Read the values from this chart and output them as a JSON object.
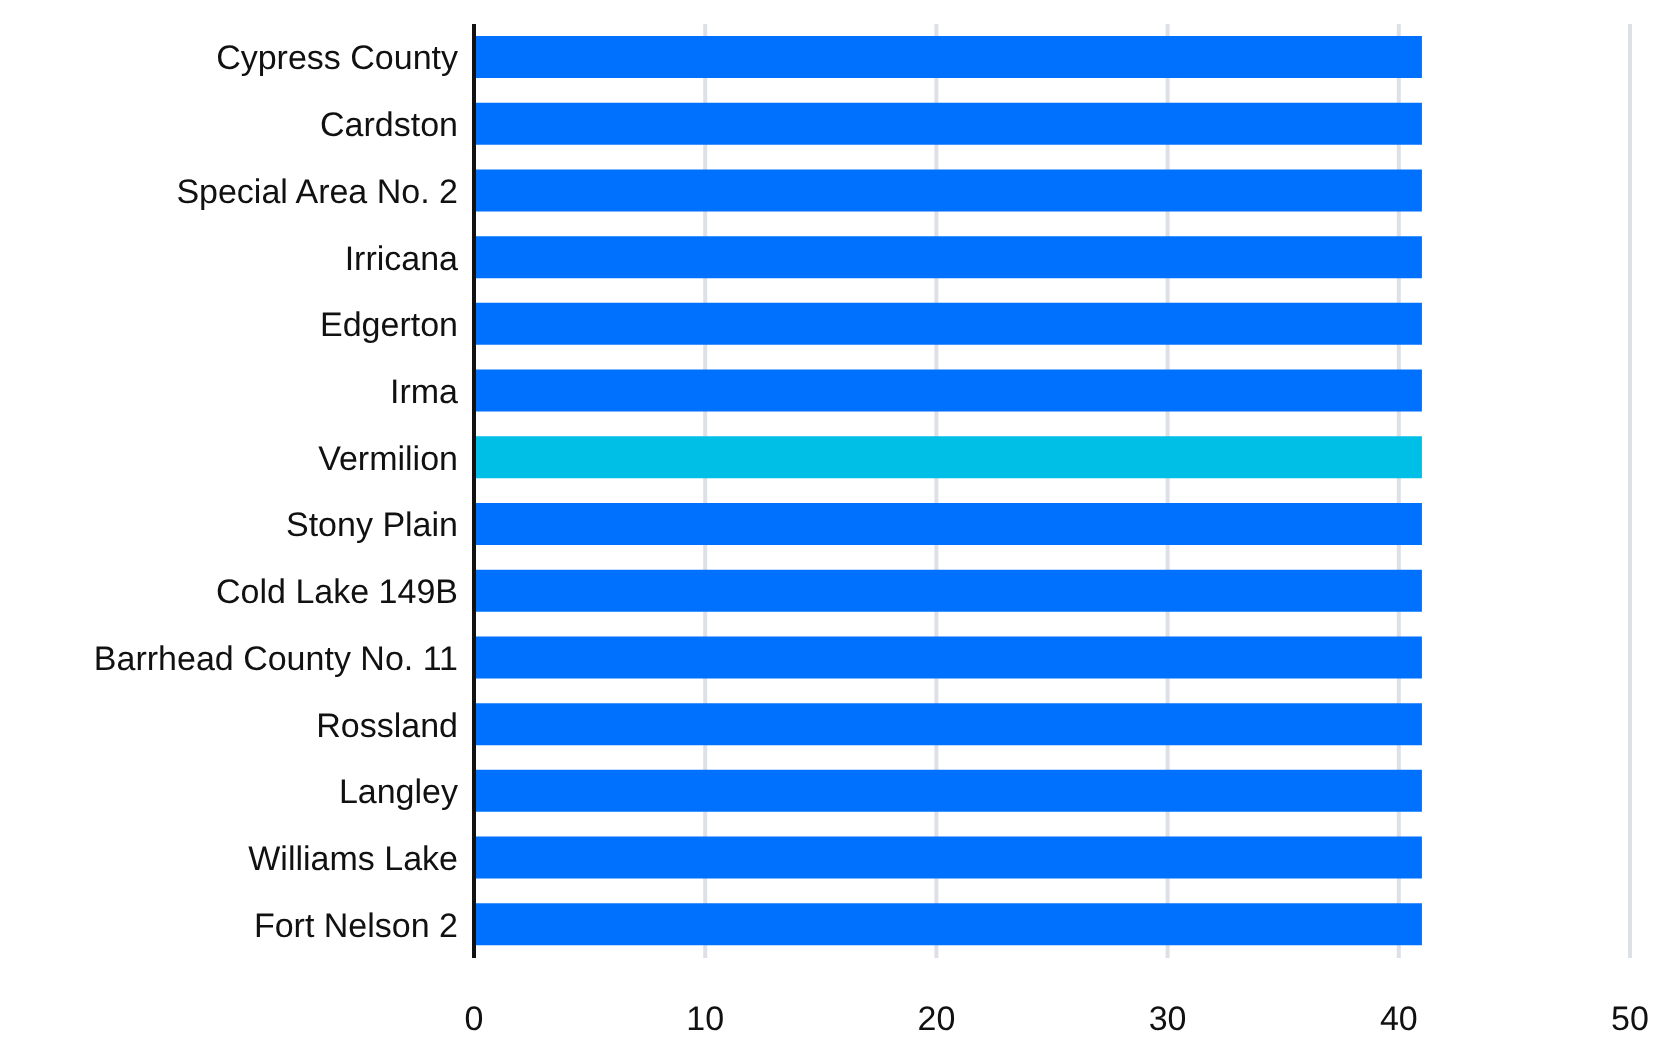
{
  "chart_data": {
    "type": "bar",
    "orientation": "horizontal",
    "categories": [
      "Cypress County",
      "Cardston",
      "Special Area No. 2",
      "Irricana",
      "Edgerton",
      "Irma",
      "Vermilion",
      "Stony Plain",
      "Cold Lake 149B",
      "Barrhead County No. 11",
      "Rossland",
      "Langley",
      "Williams Lake",
      "Fort Nelson 2"
    ],
    "values": [
      41,
      41,
      41,
      41,
      41,
      41,
      41,
      41,
      41,
      41,
      41,
      41,
      41,
      41
    ],
    "colors": [
      "#0070ff",
      "#0070ff",
      "#0070ff",
      "#0070ff",
      "#0070ff",
      "#0070ff",
      "#00bfe6",
      "#0070ff",
      "#0070ff",
      "#0070ff",
      "#0070ff",
      "#0070ff",
      "#0070ff",
      "#0070ff"
    ],
    "xlim": [
      0,
      50
    ],
    "xticks": [
      0,
      10,
      20,
      30,
      40,
      50
    ],
    "grid": "x",
    "legend": false
  }
}
